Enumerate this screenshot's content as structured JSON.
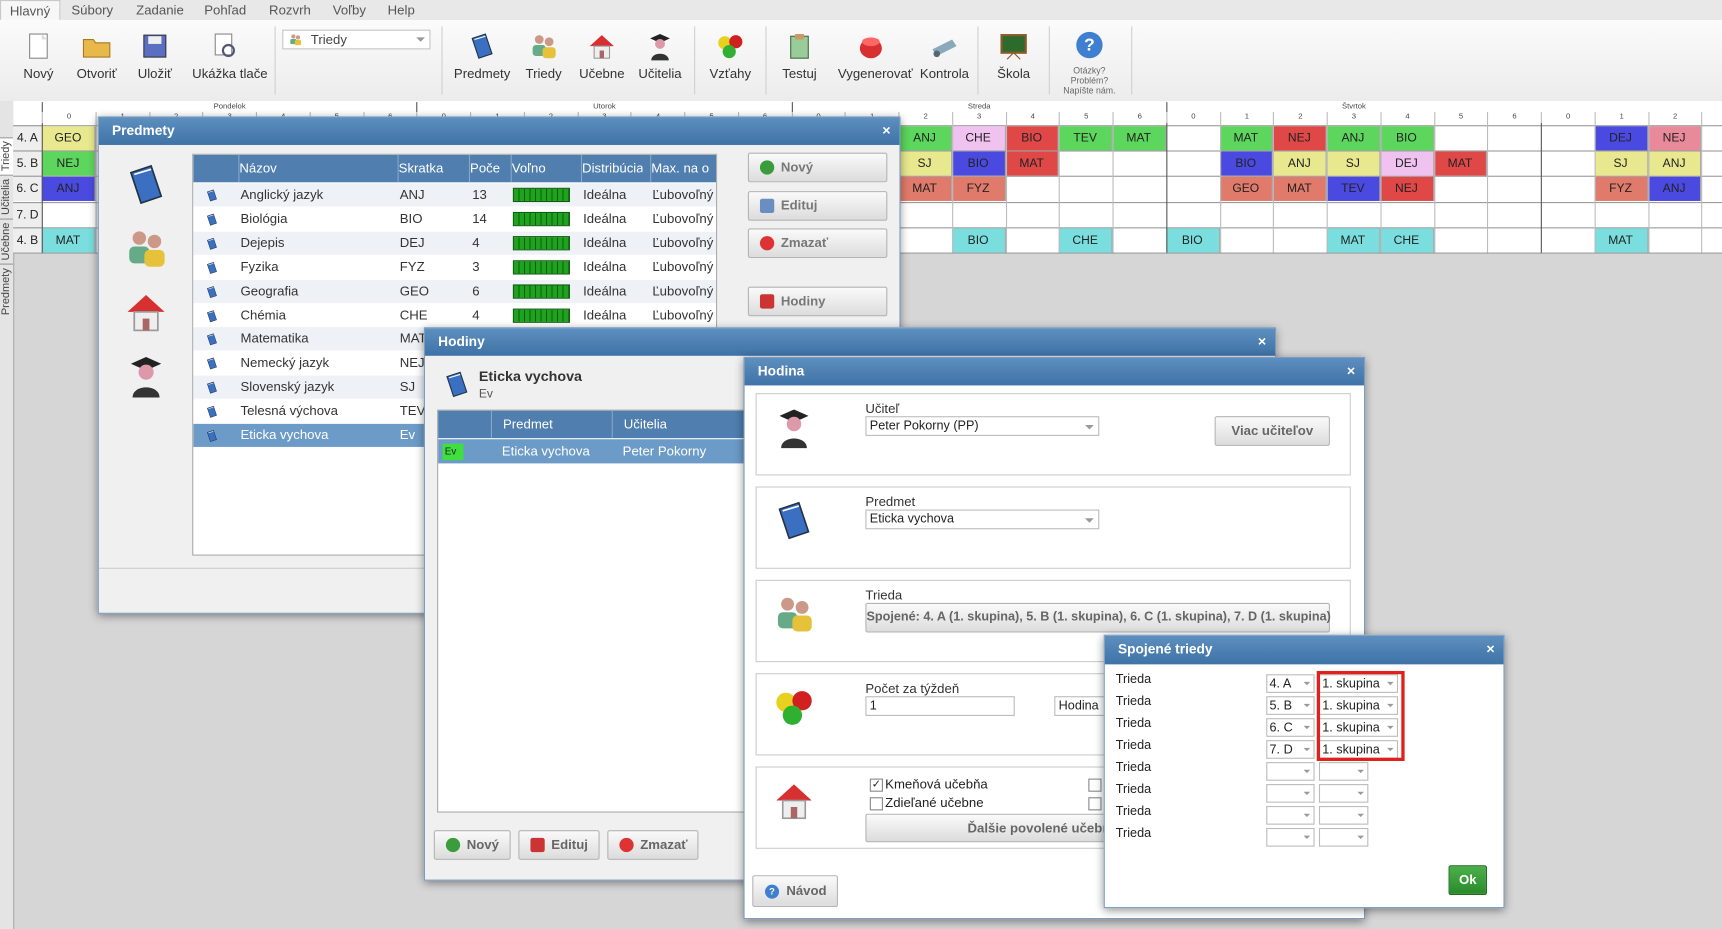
{
  "menu": [
    "Hlavný",
    "Súbory",
    "Zadanie",
    "Pohľad",
    "Rozvrh",
    "Voľby",
    "Help"
  ],
  "toolbar": {
    "buttons": [
      "Nový",
      "Otvoriť",
      "Uložiť",
      "Ukážka tlače",
      "Predmety",
      "Triedy",
      "Učebne",
      "Učitelia",
      "Vzťahy",
      "Testuj",
      "Vygenerovať",
      "Kontrola",
      "Škola"
    ],
    "view_select": "Triedy",
    "help": [
      "Otázky?",
      "Problém?",
      "Napíšte nám."
    ]
  },
  "side_tabs": [
    "Predmety",
    "Učebne",
    "Učitelia",
    "Triedy"
  ],
  "timetable": {
    "days": [
      "Pondelok",
      "Utorok",
      "Streda",
      "Štvrtok"
    ],
    "periods": [
      0,
      1,
      2,
      3,
      4,
      5,
      6
    ],
    "rows": [
      {
        "class": "4. A",
        "cells": [
          {
            "slot": 0,
            "label": "GEO",
            "color": "#e8e88e"
          },
          {
            "slot": 16,
            "label": "ANJ",
            "color": "#5cd65c"
          },
          {
            "slot": 17,
            "label": "CHE",
            "color": "#f0c2f0"
          },
          {
            "slot": 18,
            "label": "BIO",
            "color": "#e04848"
          },
          {
            "slot": 19,
            "label": "TEV",
            "color": "#5cd65c"
          },
          {
            "slot": 20,
            "label": "MAT",
            "color": "#5cd65c"
          },
          {
            "slot": 22,
            "label": "MAT",
            "color": "#5cd65c"
          },
          {
            "slot": 23,
            "label": "NEJ",
            "color": "#e04848"
          },
          {
            "slot": 24,
            "label": "ANJ",
            "color": "#5cd65c"
          },
          {
            "slot": 25,
            "label": "BIO",
            "color": "#5cd65c"
          },
          {
            "slot": 29,
            "label": "DEJ",
            "color": "#4a4ae0"
          },
          {
            "slot": 30,
            "label": "NEJ",
            "color": "#e88a9a"
          }
        ]
      },
      {
        "class": "5. B",
        "cells": [
          {
            "slot": 0,
            "label": "NEJ",
            "color": "#5cd65c"
          },
          {
            "slot": 16,
            "label": "SJ",
            "color": "#e8e88e"
          },
          {
            "slot": 17,
            "label": "BIO",
            "color": "#4a4ae0"
          },
          {
            "slot": 18,
            "label": "MAT",
            "color": "#e04848"
          },
          {
            "slot": 22,
            "label": "BIO",
            "color": "#4a4ae0"
          },
          {
            "slot": 23,
            "label": "ANJ",
            "color": "#e8e88e"
          },
          {
            "slot": 24,
            "label": "SJ",
            "color": "#e8e88e"
          },
          {
            "slot": 25,
            "label": "DEJ",
            "color": "#f0c2f0"
          },
          {
            "slot": 26,
            "label": "MAT",
            "color": "#e04848"
          },
          {
            "slot": 29,
            "label": "SJ",
            "color": "#e8e88e"
          },
          {
            "slot": 30,
            "label": "ANJ",
            "color": "#e8e88e"
          }
        ]
      },
      {
        "class": "6. C",
        "cells": [
          {
            "slot": 0,
            "label": "ANJ",
            "color": "#4a4ae0"
          },
          {
            "slot": 16,
            "label": "MAT",
            "color": "#e07a6a"
          },
          {
            "slot": 17,
            "label": "FYZ",
            "color": "#e07a6a"
          },
          {
            "slot": 22,
            "label": "GEO",
            "color": "#e07a6a"
          },
          {
            "slot": 23,
            "label": "MAT",
            "color": "#e07a6a"
          },
          {
            "slot": 24,
            "label": "TEV",
            "color": "#4a4ae0"
          },
          {
            "slot": 25,
            "label": "NEJ",
            "color": "#e04848"
          },
          {
            "slot": 29,
            "label": "FYZ",
            "color": "#e07a6a"
          },
          {
            "slot": 30,
            "label": "ANJ",
            "color": "#4a4ae0"
          }
        ]
      },
      {
        "class": "7. D",
        "cells": []
      },
      {
        "class": "4. B",
        "cells": [
          {
            "slot": 0,
            "label": "MAT",
            "color": "#7adede"
          },
          {
            "slot": 17,
            "label": "BIO",
            "color": "#7adede"
          },
          {
            "slot": 19,
            "label": "CHE",
            "color": "#7adede"
          },
          {
            "slot": 21,
            "label": "BIO",
            "color": "#7adede"
          },
          {
            "slot": 24,
            "label": "MAT",
            "color": "#7adede"
          },
          {
            "slot": 25,
            "label": "CHE",
            "color": "#7adede"
          },
          {
            "slot": 29,
            "label": "MAT",
            "color": "#7adede"
          }
        ]
      }
    ]
  },
  "predmety": {
    "title": "Predmety",
    "columns": [
      "Názov",
      "Skratka",
      "Poče",
      "Voľno",
      "Distribúcia",
      "Max. na o"
    ],
    "rows": [
      {
        "name": "Anglický jazyk",
        "abbr": "ANJ",
        "count": 13,
        "distribution": "Ideálna",
        "max": "Ľubovoľný"
      },
      {
        "name": "Biológia",
        "abbr": "BIO",
        "count": 14,
        "distribution": "Ideálna",
        "max": "Ľubovoľný"
      },
      {
        "name": "Dejepis",
        "abbr": "DEJ",
        "count": 4,
        "distribution": "Ideálna",
        "max": "Ľubovoľný"
      },
      {
        "name": "Fyzika",
        "abbr": "FYZ",
        "count": 3,
        "distribution": "Ideálna",
        "max": "Ľubovoľný"
      },
      {
        "name": "Geografia",
        "abbr": "GEO",
        "count": 6,
        "distribution": "Ideálna",
        "max": "Ľubovoľný"
      },
      {
        "name": "Chémia",
        "abbr": "CHE",
        "count": 4,
        "distribution": "Ideálna",
        "max": "Ľubovoľný"
      },
      {
        "name": "Matematika",
        "abbr": "MAT"
      },
      {
        "name": "Nemecký jazyk",
        "abbr": "NEJ"
      },
      {
        "name": "Slovenský jazyk",
        "abbr": "SJ"
      },
      {
        "name": "Telesná výchova",
        "abbr": "TEV"
      },
      {
        "name": "Eticka vychova",
        "abbr": "Ev"
      }
    ],
    "buttons": [
      "Nový",
      "Edituj",
      "Zmazať",
      "Hodiny"
    ]
  },
  "hodiny": {
    "title": "Hodiny",
    "subject": "Eticka vychova",
    "abbr": "Ev",
    "columns": [
      "Predmet",
      "Učitelia"
    ],
    "row": {
      "badge": "Ev",
      "subject": "Eticka vychova",
      "teacher": "Peter Pokorny"
    },
    "buttons": [
      "Nový",
      "Edituj",
      "Zmazať"
    ]
  },
  "hodina": {
    "title": "Hodina",
    "teacher_label": "Učiteľ",
    "teacher": "Peter Pokorny (PP)",
    "more_teachers": "Viac učiteľov",
    "subject_label": "Predmet",
    "subject": "Eticka vychova",
    "class_label": "Trieda",
    "class_value": "Spojené: 4. A (1. skupina), 5. B (1. skupina), 6. C (1. skupina), 7. D (1. skupina)",
    "count_label": "Počet za týždeň",
    "count": 1,
    "unit": "Hodina",
    "home_room": "Kmeňová učebňa",
    "shared_rooms": "Zdieľané učebne",
    "more_rooms": "Ďalšie povolené učebne",
    "help": "Návod"
  },
  "spojene": {
    "title": "Spojené triedy",
    "row_label": "Trieda",
    "classes": [
      "4. A",
      "5. B",
      "6. C",
      "7. D",
      null,
      null,
      null,
      null
    ],
    "groups": [
      "1. skupina",
      "1. skupina",
      "1. skupina",
      "1. skupina",
      null,
      null,
      null,
      null
    ],
    "ok": "Ok"
  }
}
